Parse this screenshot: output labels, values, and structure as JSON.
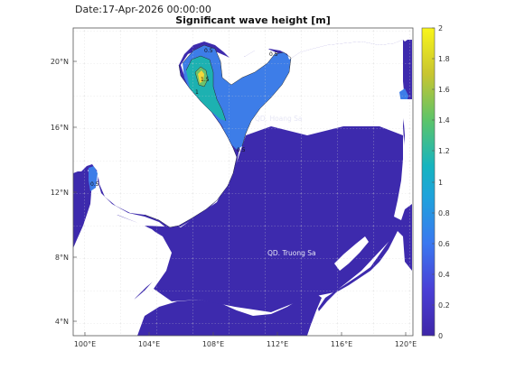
{
  "header": {
    "date_label": "Date:17-Apr-2026 00:00:00",
    "title": "Significant wave height [m]"
  },
  "map": {
    "lon_ticks": [
      "100°E",
      "104°E",
      "108°E",
      "112°E",
      "116°E",
      "120°E"
    ],
    "lat_ticks": [
      "20°N",
      "16°N",
      "12°N",
      "8°N",
      "4°N"
    ],
    "labels": {
      "hoang_sa": "QD. Hoang Sa",
      "truong_sa": "QD. Truong Sa"
    },
    "contour_labels": [
      "0.5",
      "0.5",
      "1",
      "1.5",
      "0.5",
      "0.5"
    ]
  },
  "colorbar": {
    "ticks": [
      "2",
      "1.8",
      "1.6",
      "1.4",
      "1.2",
      "1",
      "0.8",
      "0.6",
      "0.4",
      "0.2",
      "0"
    ],
    "colors": {
      "sea_low": "#3d2aad",
      "blue": "#3d7de8",
      "teal": "#1db1b1",
      "green": "#6cc26c",
      "yellow": "#f4d83a",
      "land": "#ffffff"
    }
  }
}
